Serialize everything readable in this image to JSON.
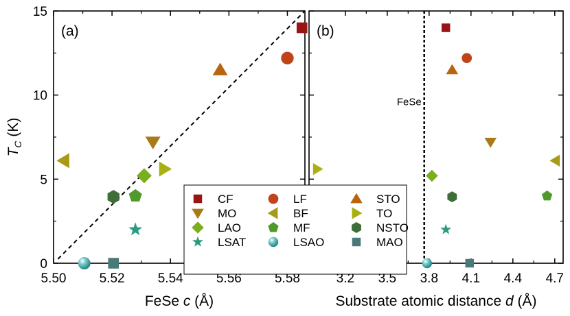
{
  "colors": {
    "CF": "#9a1414",
    "LF": "#c0441a",
    "STO": "#b8650f",
    "MO": "#a87a18",
    "BF": "#a89a18",
    "TO": "#a8b012",
    "LAO": "#7aae1e",
    "MF": "#4f9a2a",
    "NSTO": "#3f6e3a",
    "LSAT": "#2a9a80",
    "LSAO": "#2a9a9a",
    "MAO": "#4a7a78",
    "dashed": "#000000"
  },
  "legend": [
    {
      "key": "CF",
      "label": "CF",
      "marker": "square"
    },
    {
      "key": "LF",
      "label": "LF",
      "marker": "circle"
    },
    {
      "key": "STO",
      "label": "STO",
      "marker": "triangle-up"
    },
    {
      "key": "MO",
      "label": "MO",
      "marker": "triangle-down"
    },
    {
      "key": "BF",
      "label": "BF",
      "marker": "triangle-left"
    },
    {
      "key": "TO",
      "label": "TO",
      "marker": "triangle-right"
    },
    {
      "key": "LAO",
      "label": "LAO",
      "marker": "diamond"
    },
    {
      "key": "MF",
      "label": "MF",
      "marker": "pentagon"
    },
    {
      "key": "NSTO",
      "label": "NSTO",
      "marker": "hexagon"
    },
    {
      "key": "LSAT",
      "label": "LSAT",
      "marker": "star"
    },
    {
      "key": "LSAO",
      "label": "LSAO",
      "marker": "sphere"
    },
    {
      "key": "MAO",
      "label": "MAO",
      "marker": "square"
    }
  ],
  "chart_data": [
    {
      "type": "scatter",
      "panel_label": "(a)",
      "xlabel_prefix": "FeSe ",
      "xlabel_var": "c",
      "xlabel_suffix": " (Å)",
      "ylabel_var": "T",
      "ylabel_sub": "C",
      "ylabel_suffix": " (K)",
      "xlim": [
        5.5,
        5.586
      ],
      "ylim": [
        0,
        15
      ],
      "xticks": [
        5.5,
        5.52,
        5.54,
        5.56,
        5.58
      ],
      "xtick_labels": [
        "5.50",
        "5.52",
        "5.54",
        "5.56",
        "5.58"
      ],
      "yticks": [
        0,
        5,
        10,
        15
      ],
      "ytick_labels": [
        "0",
        "5",
        "10",
        "15"
      ],
      "points": [
        {
          "key": "CF",
          "x": 5.585,
          "y": 14.0
        },
        {
          "key": "LF",
          "x": 5.58,
          "y": 12.2
        },
        {
          "key": "STO",
          "x": 5.557,
          "y": 11.5
        },
        {
          "key": "MO",
          "x": 5.534,
          "y": 7.2
        },
        {
          "key": "BF",
          "x": 5.5035,
          "y": 6.1
        },
        {
          "key": "TO",
          "x": 5.538,
          "y": 5.6
        },
        {
          "key": "LAO",
          "x": 5.531,
          "y": 5.2
        },
        {
          "key": "MF",
          "x": 5.528,
          "y": 4.0
        },
        {
          "key": "NSTO",
          "x": 5.5205,
          "y": 3.95
        },
        {
          "key": "LSAT",
          "x": 5.528,
          "y": 2.0
        },
        {
          "key": "LSAO",
          "x": 5.5105,
          "y": 0.0
        },
        {
          "key": "MAO",
          "x": 5.5205,
          "y": 0.0
        }
      ],
      "fit_line": {
        "x": [
          5.5015,
          5.586
        ],
        "y": [
          0.25,
          15
        ]
      }
    },
    {
      "type": "scatter",
      "panel_label": "(b)",
      "xlabel_prefix": "Substrate atomic distance ",
      "xlabel_var": "d",
      "xlabel_suffix": " (Å)",
      "xlim": [
        2.94,
        4.76
      ],
      "ylim": [
        0,
        15
      ],
      "xticks": [
        3.2,
        3.5,
        3.8,
        4.1,
        4.4,
        4.7
      ],
      "xtick_labels": [
        "3.2",
        "3.5",
        "3.8",
        "4.1",
        "4.4",
        "4.7"
      ],
      "points": [
        {
          "key": "CF",
          "x": 3.92,
          "y": 14.0
        },
        {
          "key": "LF",
          "x": 4.07,
          "y": 12.2
        },
        {
          "key": "STO",
          "x": 3.965,
          "y": 11.5
        },
        {
          "key": "MO",
          "x": 4.24,
          "y": 7.2
        },
        {
          "key": "BF",
          "x": 4.705,
          "y": 6.1
        },
        {
          "key": "TO",
          "x": 3.0,
          "y": 5.6
        },
        {
          "key": "LAO",
          "x": 3.82,
          "y": 5.2
        },
        {
          "key": "MF",
          "x": 4.645,
          "y": 4.0
        },
        {
          "key": "NSTO",
          "x": 3.965,
          "y": 3.95
        },
        {
          "key": "LSAT",
          "x": 3.92,
          "y": 2.0
        },
        {
          "key": "LSAO",
          "x": 3.785,
          "y": 0.0
        },
        {
          "key": "MAO",
          "x": 4.09,
          "y": 0.0
        }
      ],
      "reference_line": {
        "x": 3.765,
        "label": "FeSe"
      }
    }
  ]
}
